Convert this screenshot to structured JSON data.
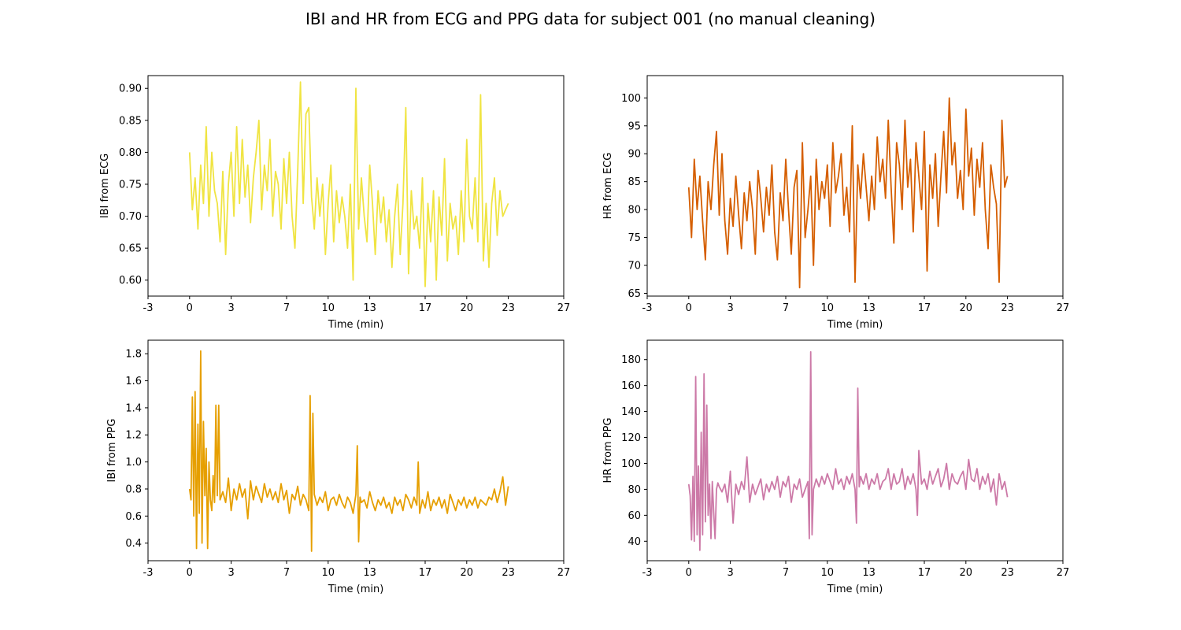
{
  "suptitle": "IBI and HR from ECG and PPG data for subject 001 (no manual cleaning)",
  "chart_data": [
    {
      "type": "line",
      "xlabel": "Time (min)",
      "ylabel": "IBI from ECG",
      "color": "#f0e442",
      "xlim": [
        -3,
        27
      ],
      "ylim": [
        0.575,
        0.92
      ],
      "xticks": [
        -3,
        0,
        3,
        7,
        10,
        13,
        17,
        20,
        23,
        27
      ],
      "yticks": [
        0.6,
        0.65,
        0.7,
        0.75,
        0.8,
        0.85,
        0.9
      ],
      "yfmt": 2,
      "series": [
        {
          "x": [
            0.0,
            0.2,
            0.4,
            0.6,
            0.8,
            1.0,
            1.2,
            1.4,
            1.6,
            1.8,
            2.0,
            2.2,
            2.4,
            2.6,
            2.8,
            3.0,
            3.2,
            3.4,
            3.6,
            3.8,
            4.0,
            4.2,
            4.4,
            4.6,
            4.8,
            5.0,
            5.2,
            5.4,
            5.6,
            5.8,
            6.0,
            6.2,
            6.4,
            6.6,
            6.8,
            7.0,
            7.2,
            7.4,
            7.6,
            7.8,
            8.0,
            8.2,
            8.4,
            8.6,
            8.8,
            9.0,
            9.2,
            9.4,
            9.6,
            9.8,
            10.0,
            10.2,
            10.4,
            10.6,
            10.8,
            11.0,
            11.2,
            11.4,
            11.6,
            11.8,
            12.0,
            12.2,
            12.4,
            12.6,
            12.8,
            13.0,
            13.2,
            13.4,
            13.6,
            13.8,
            14.0,
            14.2,
            14.4,
            14.6,
            14.8,
            15.0,
            15.2,
            15.4,
            15.6,
            15.8,
            16.0,
            16.2,
            16.4,
            16.6,
            16.8,
            17.0,
            17.2,
            17.4,
            17.6,
            17.8,
            18.0,
            18.2,
            18.4,
            18.6,
            18.8,
            19.0,
            19.2,
            19.4,
            19.6,
            19.8,
            20.0,
            20.2,
            20.4,
            20.6,
            20.8,
            21.0,
            21.2,
            21.4,
            21.6,
            21.8,
            22.0,
            22.2,
            22.4,
            22.6,
            22.8,
            23.0
          ],
          "y": [
            0.8,
            0.71,
            0.76,
            0.68,
            0.78,
            0.72,
            0.84,
            0.7,
            0.8,
            0.74,
            0.72,
            0.66,
            0.77,
            0.64,
            0.75,
            0.8,
            0.7,
            0.84,
            0.72,
            0.82,
            0.73,
            0.78,
            0.69,
            0.76,
            0.8,
            0.85,
            0.71,
            0.78,
            0.74,
            0.82,
            0.7,
            0.77,
            0.75,
            0.68,
            0.79,
            0.72,
            0.8,
            0.7,
            0.65,
            0.77,
            0.91,
            0.72,
            0.86,
            0.87,
            0.73,
            0.68,
            0.76,
            0.7,
            0.75,
            0.64,
            0.72,
            0.78,
            0.66,
            0.74,
            0.69,
            0.73,
            0.7,
            0.65,
            0.75,
            0.6,
            0.9,
            0.68,
            0.76,
            0.7,
            0.66,
            0.78,
            0.72,
            0.64,
            0.74,
            0.69,
            0.73,
            0.66,
            0.71,
            0.62,
            0.7,
            0.75,
            0.64,
            0.72,
            0.87,
            0.61,
            0.74,
            0.68,
            0.7,
            0.65,
            0.76,
            0.59,
            0.72,
            0.66,
            0.74,
            0.6,
            0.73,
            0.67,
            0.79,
            0.63,
            0.72,
            0.68,
            0.7,
            0.64,
            0.74,
            0.66,
            0.82,
            0.7,
            0.68,
            0.76,
            0.66,
            0.89,
            0.63,
            0.72,
            0.62,
            0.72,
            0.76,
            0.67,
            0.74,
            0.7,
            0.71,
            0.72
          ]
        }
      ]
    },
    {
      "type": "line",
      "xlabel": "Time (min)",
      "ylabel": "HR from ECG",
      "color": "#d55e00",
      "xlim": [
        -3,
        27
      ],
      "ylim": [
        64.5,
        104
      ],
      "xticks": [
        -3,
        0,
        3,
        7,
        10,
        13,
        17,
        20,
        23,
        27
      ],
      "yticks": [
        65,
        70,
        75,
        80,
        85,
        90,
        95,
        100
      ],
      "yfmt": 0,
      "series": [
        {
          "x": [
            0.0,
            0.2,
            0.4,
            0.6,
            0.8,
            1.0,
            1.2,
            1.4,
            1.6,
            1.8,
            2.0,
            2.2,
            2.4,
            2.6,
            2.8,
            3.0,
            3.2,
            3.4,
            3.6,
            3.8,
            4.0,
            4.2,
            4.4,
            4.6,
            4.8,
            5.0,
            5.2,
            5.4,
            5.6,
            5.8,
            6.0,
            6.2,
            6.4,
            6.6,
            6.8,
            7.0,
            7.2,
            7.4,
            7.6,
            7.8,
            8.0,
            8.2,
            8.4,
            8.6,
            8.8,
            9.0,
            9.2,
            9.4,
            9.6,
            9.8,
            10.0,
            10.2,
            10.4,
            10.6,
            10.8,
            11.0,
            11.2,
            11.4,
            11.6,
            11.8,
            12.0,
            12.2,
            12.4,
            12.6,
            12.8,
            13.0,
            13.2,
            13.4,
            13.6,
            13.8,
            14.0,
            14.2,
            14.4,
            14.6,
            14.8,
            15.0,
            15.2,
            15.4,
            15.6,
            15.8,
            16.0,
            16.2,
            16.4,
            16.6,
            16.8,
            17.0,
            17.2,
            17.4,
            17.6,
            17.8,
            18.0,
            18.2,
            18.4,
            18.6,
            18.8,
            19.0,
            19.2,
            19.4,
            19.6,
            19.8,
            20.0,
            20.2,
            20.4,
            20.6,
            20.8,
            21.0,
            21.2,
            21.4,
            21.6,
            21.8,
            22.0,
            22.2,
            22.4,
            22.6,
            22.8,
            23.0
          ],
          "y": [
            84,
            75,
            89,
            80,
            86,
            78,
            71,
            85,
            80,
            88,
            94,
            79,
            90,
            78,
            72,
            82,
            77,
            86,
            79,
            73,
            83,
            78,
            85,
            80,
            72,
            87,
            82,
            76,
            84,
            79,
            88,
            76,
            71,
            83,
            78,
            89,
            80,
            72,
            84,
            87,
            66,
            92,
            75,
            80,
            86,
            70,
            89,
            80,
            85,
            82,
            88,
            77,
            92,
            83,
            86,
            90,
            79,
            84,
            76,
            95,
            67,
            88,
            82,
            90,
            84,
            78,
            86,
            80,
            93,
            85,
            89,
            82,
            96,
            84,
            74,
            92,
            88,
            80,
            96,
            84,
            89,
            76,
            92,
            86,
            80,
            94,
            69,
            88,
            82,
            90,
            77,
            86,
            94,
            83,
            100,
            88,
            92,
            82,
            87,
            80,
            98,
            86,
            91,
            79,
            89,
            84,
            92,
            80,
            73,
            88,
            84,
            81,
            67,
            96,
            84,
            86
          ]
        }
      ]
    },
    {
      "type": "line",
      "xlabel": "Time (min)",
      "ylabel": "IBI from PPG",
      "color": "#e69f00",
      "xlim": [
        -3,
        27
      ],
      "ylim": [
        0.27,
        1.9
      ],
      "xticks": [
        -3,
        0,
        3,
        7,
        10,
        13,
        17,
        20,
        23,
        27
      ],
      "yticks": [
        0.4,
        0.6,
        0.8,
        1.0,
        1.2,
        1.4,
        1.6,
        1.8
      ],
      "yfmt": 1,
      "series": [
        {
          "x": [
            0.0,
            0.1,
            0.2,
            0.3,
            0.4,
            0.5,
            0.6,
            0.7,
            0.8,
            0.9,
            1.0,
            1.1,
            1.2,
            1.3,
            1.4,
            1.5,
            1.6,
            1.7,
            1.8,
            1.9,
            2.0,
            2.1,
            2.2,
            2.4,
            2.6,
            2.8,
            3.0,
            3.2,
            3.4,
            3.6,
            3.8,
            4.0,
            4.2,
            4.4,
            4.6,
            4.8,
            5.0,
            5.2,
            5.4,
            5.6,
            5.8,
            6.0,
            6.2,
            6.4,
            6.6,
            6.8,
            7.0,
            7.2,
            7.4,
            7.6,
            7.8,
            8.0,
            8.2,
            8.4,
            8.6,
            8.7,
            8.8,
            8.9,
            9.0,
            9.2,
            9.4,
            9.6,
            9.8,
            10.0,
            10.2,
            10.4,
            10.6,
            10.8,
            11.0,
            11.2,
            11.4,
            11.6,
            11.8,
            12.0,
            12.1,
            12.2,
            12.3,
            12.4,
            12.6,
            12.8,
            13.0,
            13.2,
            13.4,
            13.6,
            13.8,
            14.0,
            14.2,
            14.4,
            14.6,
            14.8,
            15.0,
            15.2,
            15.4,
            15.6,
            15.8,
            16.0,
            16.2,
            16.4,
            16.5,
            16.6,
            16.8,
            17.0,
            17.2,
            17.4,
            17.6,
            17.8,
            18.0,
            18.2,
            18.4,
            18.6,
            18.8,
            19.0,
            19.2,
            19.4,
            19.6,
            19.8,
            20.0,
            20.2,
            20.4,
            20.6,
            20.8,
            21.0,
            21.2,
            21.4,
            21.6,
            21.8,
            22.0,
            22.2,
            22.4,
            22.6,
            22.8,
            23.0
          ],
          "y": [
            0.8,
            0.72,
            1.48,
            0.6,
            1.52,
            0.36,
            1.28,
            0.62,
            1.82,
            0.4,
            1.3,
            0.75,
            1.1,
            0.36,
            1.0,
            0.72,
            0.64,
            0.9,
            0.7,
            1.42,
            0.75,
            1.42,
            0.72,
            0.78,
            0.7,
            0.88,
            0.64,
            0.8,
            0.72,
            0.84,
            0.74,
            0.8,
            0.58,
            0.86,
            0.72,
            0.82,
            0.76,
            0.7,
            0.84,
            0.74,
            0.8,
            0.72,
            0.78,
            0.7,
            0.84,
            0.72,
            0.79,
            0.62,
            0.76,
            0.72,
            0.82,
            0.68,
            0.76,
            0.72,
            0.64,
            1.49,
            0.34,
            1.36,
            0.76,
            0.68,
            0.74,
            0.7,
            0.78,
            0.64,
            0.72,
            0.74,
            0.68,
            0.76,
            0.7,
            0.66,
            0.74,
            0.7,
            0.62,
            0.76,
            1.12,
            0.41,
            0.74,
            0.7,
            0.72,
            0.66,
            0.78,
            0.7,
            0.64,
            0.72,
            0.68,
            0.74,
            0.66,
            0.7,
            0.62,
            0.74,
            0.68,
            0.72,
            0.64,
            0.76,
            0.72,
            0.66,
            0.74,
            0.68,
            1.0,
            0.62,
            0.72,
            0.66,
            0.78,
            0.64,
            0.72,
            0.68,
            0.74,
            0.66,
            0.72,
            0.62,
            0.76,
            0.7,
            0.64,
            0.72,
            0.68,
            0.74,
            0.66,
            0.72,
            0.68,
            0.74,
            0.66,
            0.72,
            0.7,
            0.68,
            0.74,
            0.72,
            0.8,
            0.7,
            0.78,
            0.89,
            0.68,
            0.82
          ]
        }
      ]
    },
    {
      "type": "line",
      "xlabel": "Time (min)",
      "ylabel": "HR from PPG",
      "color": "#cc79a7",
      "xlim": [
        -3,
        27
      ],
      "ylim": [
        25,
        195
      ],
      "xticks": [
        -3,
        0,
        3,
        7,
        10,
        13,
        17,
        20,
        23,
        27
      ],
      "yticks": [
        40,
        60,
        80,
        100,
        120,
        140,
        160,
        180
      ],
      "yfmt": 0,
      "series": [
        {
          "x": [
            0.0,
            0.1,
            0.2,
            0.3,
            0.4,
            0.5,
            0.6,
            0.7,
            0.8,
            0.9,
            1.0,
            1.1,
            1.2,
            1.3,
            1.4,
            1.5,
            1.6,
            1.7,
            1.8,
            1.9,
            2.0,
            2.1,
            2.2,
            2.4,
            2.6,
            2.8,
            3.0,
            3.2,
            3.4,
            3.6,
            3.8,
            4.0,
            4.2,
            4.4,
            4.6,
            4.8,
            5.0,
            5.2,
            5.4,
            5.6,
            5.8,
            6.0,
            6.2,
            6.4,
            6.6,
            6.8,
            7.0,
            7.2,
            7.4,
            7.6,
            7.8,
            8.0,
            8.2,
            8.4,
            8.6,
            8.7,
            8.8,
            8.9,
            9.0,
            9.2,
            9.4,
            9.6,
            9.8,
            10.0,
            10.2,
            10.4,
            10.6,
            10.8,
            11.0,
            11.2,
            11.4,
            11.6,
            11.8,
            12.0,
            12.1,
            12.2,
            12.3,
            12.4,
            12.6,
            12.8,
            13.0,
            13.2,
            13.4,
            13.6,
            13.8,
            14.0,
            14.2,
            14.4,
            14.6,
            14.8,
            15.0,
            15.2,
            15.4,
            15.6,
            15.8,
            16.0,
            16.2,
            16.4,
            16.5,
            16.6,
            16.8,
            17.0,
            17.2,
            17.4,
            17.6,
            17.8,
            18.0,
            18.2,
            18.4,
            18.6,
            18.8,
            19.0,
            19.2,
            19.4,
            19.6,
            19.8,
            20.0,
            20.2,
            20.4,
            20.6,
            20.8,
            21.0,
            21.2,
            21.4,
            21.6,
            21.8,
            22.0,
            22.2,
            22.4,
            22.6,
            22.8,
            23.0
          ],
          "y": [
            84,
            75,
            41,
            90,
            40,
            167,
            45,
            98,
            33,
            124,
            45,
            169,
            55,
            145,
            60,
            84,
            42,
            86,
            62,
            42,
            80,
            85,
            82,
            78,
            84,
            70,
            94,
            54,
            84,
            76,
            86,
            80,
            105,
            70,
            84,
            76,
            82,
            88,
            72,
            84,
            78,
            86,
            80,
            90,
            74,
            86,
            82,
            90,
            70,
            84,
            80,
            88,
            74,
            80,
            86,
            42,
            186,
            45,
            80,
            88,
            82,
            90,
            84,
            92,
            86,
            80,
            96,
            84,
            88,
            80,
            90,
            84,
            92,
            80,
            54,
            158,
            82,
            90,
            84,
            92,
            80,
            88,
            84,
            92,
            80,
            86,
            88,
            96,
            80,
            92,
            84,
            86,
            96,
            80,
            90,
            84,
            92,
            80,
            60,
            110,
            84,
            88,
            80,
            94,
            84,
            90,
            96,
            82,
            88,
            100,
            80,
            92,
            86,
            84,
            90,
            94,
            80,
            103,
            88,
            86,
            96,
            80,
            90,
            84,
            92,
            78,
            88,
            68,
            92,
            80,
            86,
            74
          ]
        }
      ]
    }
  ]
}
